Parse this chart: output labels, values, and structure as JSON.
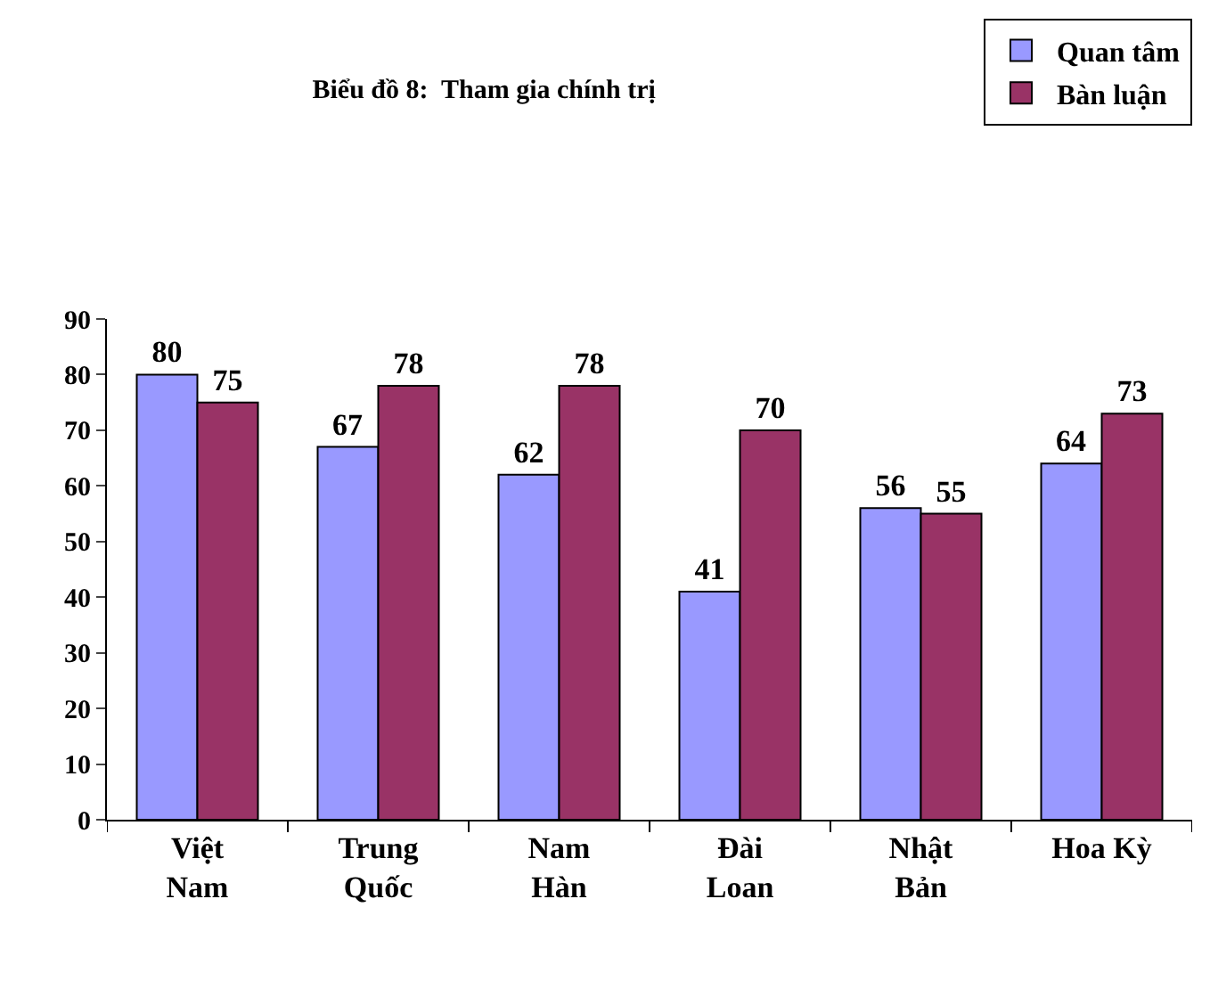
{
  "chart_data": {
    "type": "bar",
    "title": "Biểu đồ 8:  Tham gia chính trị",
    "categories": [
      "Việt\nNam",
      "Trung\nQuốc",
      "Nam\nHàn",
      "Đài\nLoan",
      "Nhật\nBản",
      "Hoa Kỳ"
    ],
    "series": [
      {
        "name": "Quan tâm",
        "color": "#9999ff",
        "values": [
          80,
          67,
          62,
          41,
          56,
          64
        ]
      },
      {
        "name": "Bàn luận",
        "color": "#993366",
        "values": [
          75,
          78,
          78,
          70,
          55,
          73
        ]
      }
    ],
    "ylim": [
      0,
      90
    ],
    "yticks": [
      0,
      10,
      20,
      30,
      40,
      50,
      60,
      70,
      80,
      90
    ],
    "grid": false,
    "legend": "top right",
    "data_labels": true
  }
}
